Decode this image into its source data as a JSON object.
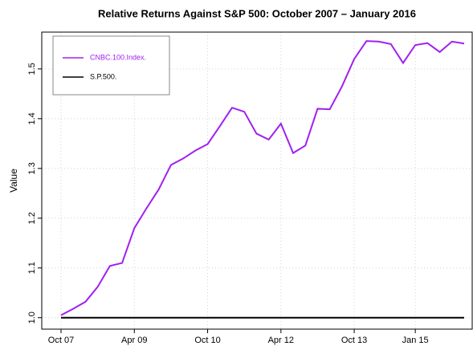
{
  "chart_data": {
    "type": "line",
    "title": "Relative Returns Against S&P 500: October 2007 – January 2016",
    "y_label": "Value",
    "categories": [
      "Oct 07",
      null,
      null,
      null,
      null,
      null,
      "Apr 09",
      null,
      null,
      null,
      null,
      null,
      "Oct 10",
      null,
      null,
      null,
      null,
      null,
      "Apr 12",
      null,
      null,
      null,
      null,
      null,
      "Oct 13",
      null,
      null,
      null,
      null,
      "Jan 15",
      null,
      null,
      null,
      null
    ],
    "series": [
      {
        "name": "CNBC.100.Index.",
        "color": "#a020f0",
        "values": [
          1.005,
          1.018,
          1.032,
          1.062,
          1.104,
          1.11,
          1.18,
          1.22,
          1.258,
          1.307,
          1.32,
          1.336,
          1.349,
          1.385,
          1.422,
          1.414,
          1.37,
          1.358,
          1.39,
          1.331,
          1.346,
          1.42,
          1.419,
          1.465,
          1.52,
          1.556,
          1.555,
          1.55,
          1.512,
          1.548,
          1.552,
          1.534,
          1.555,
          1.551
        ]
      },
      {
        "name": "S.P.500.",
        "color": "#000000",
        "values": [
          1,
          1,
          1,
          1,
          1,
          1,
          1,
          1,
          1,
          1,
          1,
          1,
          1,
          1,
          1,
          1,
          1,
          1,
          1,
          1,
          1,
          1,
          1,
          1,
          1,
          1,
          1,
          1,
          1,
          1,
          1,
          1,
          1,
          1
        ]
      }
    ],
    "ylim": [
      0.977,
      1.574
    ],
    "yticks": [
      {
        "value": 1,
        "label": "1.0"
      },
      1.1,
      1.2,
      1.3,
      1.4,
      1.5
    ],
    "grid": true,
    "legend": "top-left"
  }
}
